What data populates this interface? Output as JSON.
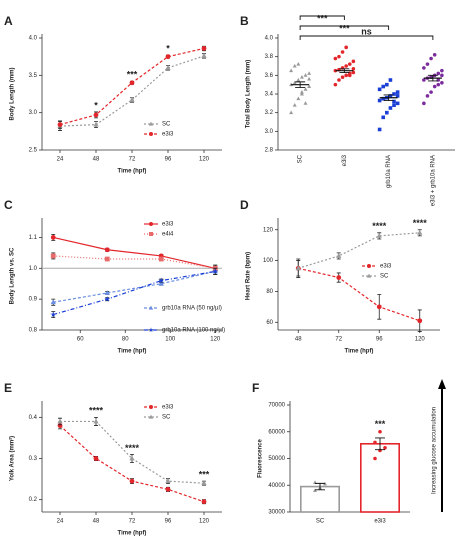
{
  "chart_data": [
    {
      "type": "line",
      "label": "A",
      "x_label": "Time (hpf)",
      "y_label": "Body Length (mm)",
      "x": [
        24,
        48,
        72,
        96,
        120
      ],
      "xlim": [
        12,
        132
      ],
      "xticks": [
        24,
        48,
        72,
        96,
        120
      ],
      "ylim": [
        2.5,
        4.0
      ],
      "yticks": [
        2.5,
        {
          "value": 3,
          "label": "3.0"
        },
        3.5,
        {
          "value": 4,
          "label": "4.0"
        }
      ],
      "legend": "lower right",
      "series": [
        {
          "name": "SC",
          "color": "#9a9a9a",
          "dash": "2,2",
          "marker": "triangle",
          "values": [
            2.82,
            2.84,
            3.17,
            3.6,
            3.76
          ],
          "errors": [
            0.06,
            0.04,
            0.03,
            0.03,
            0.03
          ]
        },
        {
          "name": "e3i3",
          "color": "#e3262b",
          "dash": "3,2",
          "marker": "circle",
          "values": [
            2.84,
            2.97,
            3.4,
            3.75,
            3.86
          ],
          "errors": [
            0.05,
            0.04,
            0.02,
            0.02,
            0.03
          ]
        }
      ],
      "annotations": [
        {
          "text": "*",
          "x": 48
        },
        {
          "text": "***",
          "x": 72
        },
        {
          "text": "*",
          "x": 96
        }
      ]
    },
    {
      "type": "dot",
      "label": "B",
      "y_label": "Total Body Length (mm)",
      "categories": [
        "SC",
        "e3i3",
        "grb10a RNA",
        "e3i3 + grb10a RNA"
      ],
      "colors": [
        "#9a9a9a",
        "#e3262b",
        "#1a3fd6",
        "#7b2d9e"
      ],
      "markers": [
        "triangle",
        "circle",
        "square",
        "circle"
      ],
      "ylim": [
        2.8,
        4.0
      ],
      "yticks": [
        2.8,
        {
          "value": 3,
          "label": "3.0"
        },
        3.2,
        3.4,
        3.6,
        3.8,
        {
          "value": 4,
          "label": "4.0"
        }
      ],
      "means": [
        3.5,
        3.65,
        3.36,
        3.57
      ],
      "errors": [
        0.03,
        0.02,
        0.03,
        0.03
      ],
      "points": [
        [
          3.2,
          3.28,
          3.35,
          3.4,
          3.45,
          3.48,
          3.5,
          3.52,
          3.55,
          3.58,
          3.6,
          3.62,
          3.65,
          3.7,
          3.72,
          3.42,
          3.3,
          3.56
        ],
        [
          3.5,
          3.55,
          3.58,
          3.6,
          3.62,
          3.63,
          3.65,
          3.66,
          3.68,
          3.7,
          3.72,
          3.75,
          3.78,
          3.8,
          3.85,
          3.9,
          3.6,
          3.67
        ],
        [
          3.02,
          3.15,
          3.2,
          3.25,
          3.28,
          3.3,
          3.33,
          3.35,
          3.36,
          3.38,
          3.4,
          3.42,
          3.45,
          3.48,
          3.5,
          3.55,
          3.32,
          3.38
        ],
        [
          3.3,
          3.38,
          3.42,
          3.48,
          3.5,
          3.52,
          3.55,
          3.57,
          3.58,
          3.6,
          3.62,
          3.65,
          3.68,
          3.72,
          3.78,
          3.82,
          3.55,
          3.6
        ]
      ],
      "comparisons": [
        {
          "from": 0,
          "to": 1,
          "text": "***"
        },
        {
          "from": 0,
          "to": 2,
          "text": "***"
        },
        {
          "from": 0,
          "to": 3,
          "text": "ns"
        }
      ]
    },
    {
      "type": "line",
      "label": "C",
      "x_label": "Time (hpf)",
      "y_label": "Body Length vs. SC",
      "x": [
        48,
        72,
        96,
        120
      ],
      "xlim": [
        43,
        123
      ],
      "xticks": [
        60,
        80,
        100,
        120
      ],
      "ylim": [
        0.8,
        1.15
      ],
      "yticks": [
        0.8,
        0.9,
        {
          "value": 1,
          "label": "1.0"
        },
        1.1
      ],
      "hline": 1,
      "legend": "upper right",
      "series": [
        {
          "name": "e3i3",
          "color": "#e3262b",
          "dash": "",
          "marker": "circle",
          "values": [
            1.1,
            1.06,
            1.04,
            1.0
          ],
          "errors": [
            0.01,
            0.005,
            0.005,
            0.01
          ]
        },
        {
          "name": "e4i4",
          "color": "#e86a6a",
          "dash": "1,2",
          "marker": "square",
          "values": [
            1.04,
            1.03,
            1.03,
            1.0
          ],
          "errors": [
            0.01,
            0.005,
            0.005,
            0.01
          ]
        },
        {
          "name": "grb10a RNA (50 ng/µl)",
          "color": "#6a8ee0",
          "dash": "3,2",
          "marker": "triangle",
          "values": [
            0.89,
            0.92,
            0.95,
            0.99
          ],
          "errors": [
            0.01,
            0.005,
            0.005,
            0.01
          ]
        },
        {
          "name": "grb10a RNA (100 ng/µl)",
          "color": "#1a3fd6",
          "dash": "4,2,1,2",
          "marker": "star",
          "values": [
            0.85,
            0.9,
            0.96,
            0.99
          ],
          "errors": [
            0.01,
            0.005,
            0.005,
            0.01
          ]
        }
      ],
      "annotations": []
    },
    {
      "type": "line",
      "label": "D",
      "x_label": "Time (hpf)",
      "y_label": "Heart Rate (bpm)",
      "x": [
        48,
        72,
        96,
        120
      ],
      "xlim": [
        36,
        132
      ],
      "xticks": [
        48,
        72,
        96,
        120
      ],
      "ylim": [
        55,
        125
      ],
      "yticks": [
        60,
        80,
        100,
        120
      ],
      "legend": "middle right",
      "series": [
        {
          "name": "e3i3",
          "color": "#e3262b",
          "dash": "3,2",
          "marker": "circle",
          "values": [
            95,
            89,
            70,
            61
          ],
          "errors": [
            6,
            3,
            8,
            7
          ]
        },
        {
          "name": "SC",
          "color": "#9a9a9a",
          "dash": "2,2",
          "marker": "triangle",
          "values": [
            95,
            103,
            116,
            118
          ],
          "errors": [
            5,
            2,
            2,
            2
          ]
        }
      ],
      "annotations": [
        {
          "text": "****",
          "x": 96
        },
        {
          "text": "****",
          "x": 120
        }
      ]
    },
    {
      "type": "line",
      "label": "E",
      "x_label": "Time (hpf)",
      "y_label": "Yolk Area (mm²)",
      "x": [
        24,
        48,
        72,
        96,
        120
      ],
      "xlim": [
        12,
        132
      ],
      "xticks": [
        24,
        48,
        72,
        96,
        120
      ],
      "ylim": [
        0.17,
        0.43
      ],
      "yticks": [
        0.2,
        0.3,
        0.4
      ],
      "legend": "upper right",
      "series": [
        {
          "name": "e3i3",
          "color": "#e3262b",
          "dash": "3,2",
          "marker": "circle",
          "values": [
            0.38,
            0.3,
            0.245,
            0.225,
            0.195
          ],
          "errors": [
            0.008,
            0.005,
            0.006,
            0.005,
            0.005
          ]
        },
        {
          "name": "SC",
          "color": "#9a9a9a",
          "dash": "2,2",
          "marker": "triangle",
          "values": [
            0.39,
            0.39,
            0.3,
            0.245,
            0.24
          ],
          "errors": [
            0.008,
            0.01,
            0.01,
            0.006,
            0.005
          ]
        }
      ],
      "annotations": [
        {
          "text": "****",
          "x": 48
        },
        {
          "text": "****",
          "x": 72
        },
        {
          "text": "***",
          "x": 120
        }
      ]
    },
    {
      "type": "bar",
      "label": "F",
      "y_label": "Fluorescence",
      "side_label": "Increasing glucose accumulation",
      "categories": [
        "SC",
        "e3i3"
      ],
      "colors": [
        "#9a9a9a",
        "#e3262b"
      ],
      "markers": [
        "triangle",
        "circle"
      ],
      "ylim": [
        30000,
        70000
      ],
      "yticks": [
        30000,
        40000,
        50000,
        60000,
        70000
      ],
      "values": [
        39500,
        55500
      ],
      "errors": [
        1200,
        2200
      ],
      "points": [
        [
          38000,
          39000,
          40500,
          41000
        ],
        [
          50000,
          53000,
          54000,
          56000,
          60000
        ]
      ],
      "annotations": [
        {
          "text": "***",
          "category": 1
        }
      ]
    }
  ]
}
